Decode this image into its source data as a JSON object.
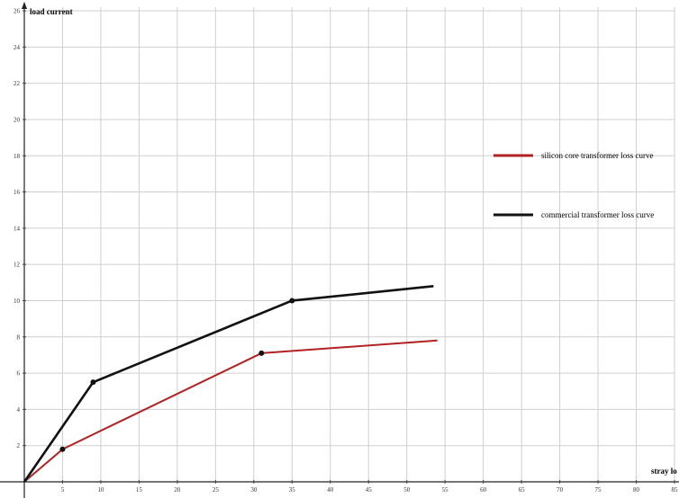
{
  "chart_data": {
    "type": "line",
    "ylabel": "load current",
    "xlabel": "stray lo",
    "xlim": [
      0,
      85
    ],
    "ylim": [
      0,
      26.2
    ],
    "x_ticks": [
      5,
      10,
      15,
      20,
      25,
      30,
      35,
      40,
      45,
      50,
      55,
      60,
      65,
      70,
      75,
      80,
      85
    ],
    "y_ticks": [
      2,
      4,
      6,
      8,
      10,
      12,
      14,
      16,
      18,
      20,
      22,
      24,
      26
    ],
    "grid": true,
    "legend_position": "right",
    "series": [
      {
        "name": "silicon core transformer loss curve",
        "color": "#b22222",
        "x": [
          0,
          5,
          31,
          54
        ],
        "y": [
          0,
          1.8,
          7.1,
          7.8
        ],
        "markers": [
          1,
          2
        ]
      },
      {
        "name": "commercial transformer loss curve",
        "color": "#111111",
        "x": [
          0,
          9,
          35,
          53.5
        ],
        "y": [
          0,
          5.5,
          10,
          10.8
        ],
        "markers": [
          1,
          2
        ]
      }
    ]
  }
}
